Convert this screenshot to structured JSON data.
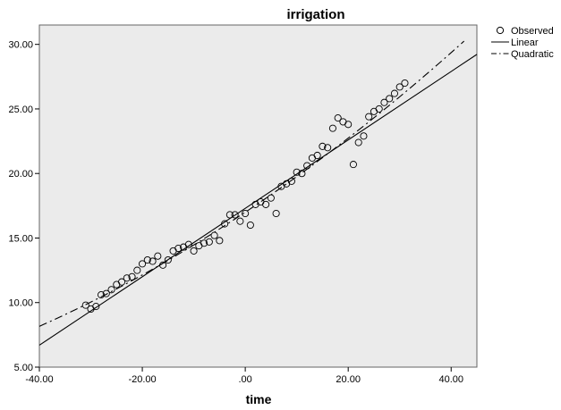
{
  "chart_data": {
    "type": "scatter",
    "title": "irrigation",
    "xlabel": "time",
    "ylabel": "",
    "xlim": [
      -40,
      45
    ],
    "ylim": [
      5,
      31.5
    ],
    "xticks": [
      -40,
      -20,
      0,
      20,
      40
    ],
    "yticks": [
      5,
      10,
      15,
      20,
      25,
      30
    ],
    "xtick_labels": [
      "-40.00",
      "-20.00",
      ".00",
      "20.00",
      "40.00"
    ],
    "ytick_labels": [
      "5.00",
      "10.00",
      "15.00",
      "20.00",
      "25.00",
      "30.00"
    ],
    "grid": false,
    "legend_position": "top-right",
    "legend": [
      {
        "label": "Observed",
        "kind": "marker"
      },
      {
        "label": "Linear",
        "kind": "solid"
      },
      {
        "label": "Quadratic",
        "kind": "dashdot"
      }
    ],
    "observed": {
      "name": "Observed",
      "x": [
        -31,
        -30,
        -29,
        -28,
        -27,
        -26,
        -25,
        -24,
        -23,
        -22,
        -21,
        -20,
        -19,
        -18,
        -17,
        -16,
        -15,
        -14,
        -13,
        -12,
        -11,
        -10,
        -9,
        -8,
        -7,
        -6,
        -5,
        -4,
        -3,
        -2,
        -1,
        0,
        1,
        2,
        3,
        4,
        5,
        6,
        7,
        8,
        9,
        10,
        11,
        12,
        13,
        14,
        15,
        16,
        17,
        18,
        19,
        20,
        21,
        22,
        23,
        24,
        25,
        26,
        27,
        28,
        29,
        30,
        31
      ],
      "y": [
        9.8,
        9.5,
        9.7,
        10.6,
        10.7,
        11.0,
        11.4,
        11.6,
        11.9,
        12.0,
        12.5,
        13.0,
        13.3,
        13.2,
        13.6,
        12.9,
        13.3,
        14.0,
        14.2,
        14.3,
        14.5,
        14.0,
        14.4,
        14.6,
        14.7,
        15.2,
        14.8,
        16.1,
        16.8,
        16.8,
        16.3,
        16.9,
        16.0,
        17.6,
        17.8,
        17.6,
        18.1,
        16.9,
        19.0,
        19.2,
        19.4,
        20.1,
        20.0,
        20.6,
        21.2,
        21.4,
        22.1,
        22.0,
        23.5,
        24.3,
        24.0,
        23.8,
        20.7,
        22.4,
        22.9,
        24.4,
        24.8,
        25.0,
        25.5,
        25.8,
        26.2,
        26.7,
        27.0
      ]
    },
    "linear_fit": {
      "name": "Linear",
      "intercept": 17.3,
      "slope": 0.265
    },
    "quadratic_fit": {
      "name": "Quadratic",
      "a": 17.0,
      "b": 0.265,
      "c": 0.0011
    }
  }
}
